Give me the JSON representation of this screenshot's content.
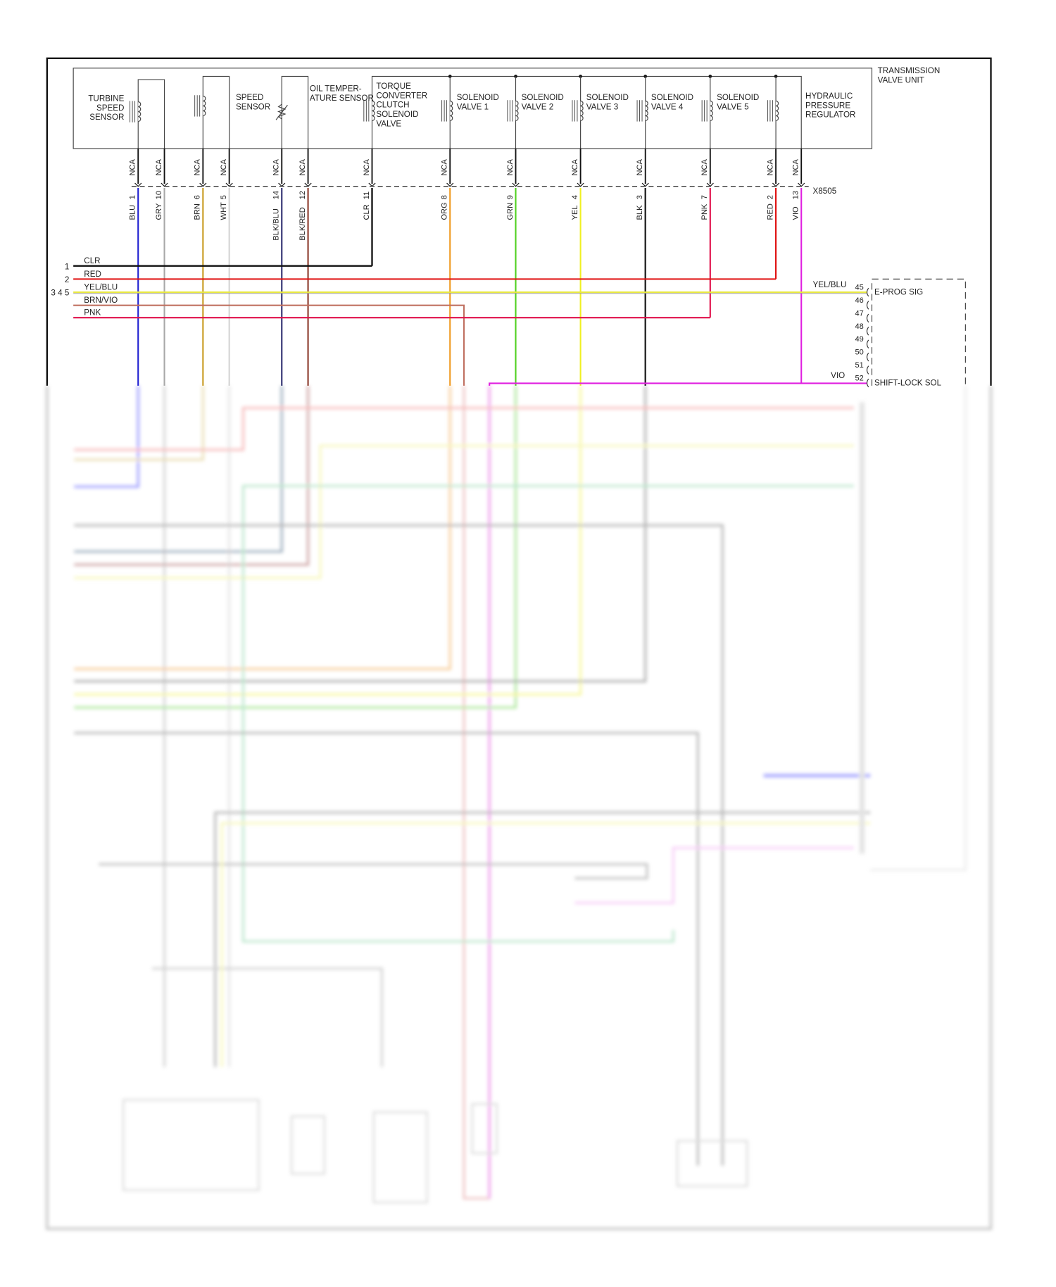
{
  "valve_unit": {
    "title": [
      "TRANSMISSION",
      "VALVE UNIT"
    ],
    "components": [
      {
        "name": "turbine-speed-sensor",
        "lines": [
          "TURBINE",
          "SPEED",
          "SENSOR"
        ]
      },
      {
        "name": "speed-sensor",
        "lines": [
          "SPEED",
          "SENSOR"
        ]
      },
      {
        "name": "oil-temperature-sensor",
        "lines": [
          "OIL TEMPER-",
          "ATURE SENSOR"
        ]
      },
      {
        "name": "torque-converter-clutch-solenoid-valve",
        "lines": [
          "TORQUE",
          "CONVERTER",
          "CLUTCH",
          "SOLENOID",
          "VALVE"
        ]
      },
      {
        "name": "solenoid-valve-1",
        "lines": [
          "SOLENOID",
          "VALVE 1"
        ]
      },
      {
        "name": "solenoid-valve-2",
        "lines": [
          "SOLENOID",
          "VALVE 2"
        ]
      },
      {
        "name": "solenoid-valve-3",
        "lines": [
          "SOLENOID",
          "VALVE 3"
        ]
      },
      {
        "name": "solenoid-valve-4",
        "lines": [
          "SOLENOID",
          "VALVE 4"
        ]
      },
      {
        "name": "solenoid-valve-5",
        "lines": [
          "SOLENOID",
          "VALVE 5"
        ]
      },
      {
        "name": "hydraulic-pressure-regulator",
        "lines": [
          "HYDRAULIC",
          "PRESSURE",
          "REGULATOR"
        ]
      }
    ]
  },
  "connector": {
    "name": "X8505",
    "pins": [
      {
        "nca": "NCA",
        "pin": "1",
        "wire": "BLU",
        "color": "#2020d0"
      },
      {
        "nca": "NCA",
        "pin": "10",
        "wire": "GRY",
        "color": "#a8a8a8"
      },
      {
        "nca": "NCA",
        "pin": "6",
        "wire": "BRN",
        "color": "#c89a20"
      },
      {
        "nca": "NCA",
        "pin": "5",
        "wire": "WHT",
        "color": "#d4d4d4"
      },
      {
        "nca": "NCA",
        "pin": "14",
        "wire": "BLK/BLU",
        "color": "#303070"
      },
      {
        "nca": "NCA",
        "pin": "12",
        "wire": "BLK/RED",
        "color": "#8a3a2a"
      },
      {
        "nca": "NCA",
        "pin": "11",
        "wire": "CLR",
        "color": "#111111"
      },
      {
        "nca": "NCA",
        "pin": "8",
        "wire": "ORG",
        "color": "#f09a20"
      },
      {
        "nca": "NCA",
        "pin": "9",
        "wire": "GRN",
        "color": "#50d020"
      },
      {
        "nca": "NCA",
        "pin": "4",
        "wire": "YEL",
        "color": "#f0f020"
      },
      {
        "nca": "NCA",
        "pin": "3",
        "wire": "BLK",
        "color": "#222222"
      },
      {
        "nca": "NCA",
        "pin": "7",
        "wire": "PNK",
        "color": "#e0104a"
      },
      {
        "nca": "NCA",
        "pin": "2",
        "wire": "RED",
        "color": "#e01010"
      },
      {
        "nca": "NCA",
        "pin": "13",
        "wire": "VIO",
        "color": "#e020e0"
      }
    ]
  },
  "bus": [
    {
      "num": "1",
      "label": "CLR",
      "color": "#111111"
    },
    {
      "num": "2",
      "label": "RED",
      "color": "#e01010"
    },
    {
      "num": "3 4 5",
      "label": "YEL/BLU",
      "color": "#e8e840"
    },
    {
      "num": "",
      "label": "BRN/VIO",
      "color": "#c07060"
    },
    {
      "num": "",
      "label": "PNK",
      "color": "#e0104a"
    }
  ],
  "module": {
    "pins": [
      {
        "pin": "45",
        "wire": "YEL/BLU",
        "signal": "E-PROG SIG"
      },
      {
        "pin": "46",
        "wire": "",
        "signal": ""
      },
      {
        "pin": "47",
        "wire": "",
        "signal": ""
      },
      {
        "pin": "48",
        "wire": "",
        "signal": ""
      },
      {
        "pin": "49",
        "wire": "",
        "signal": ""
      },
      {
        "pin": "50",
        "wire": "",
        "signal": ""
      },
      {
        "pin": "51",
        "wire": "",
        "signal": ""
      },
      {
        "pin": "52",
        "wire": "VIO",
        "signal": "SHIFT-LOCK SOL"
      }
    ]
  }
}
